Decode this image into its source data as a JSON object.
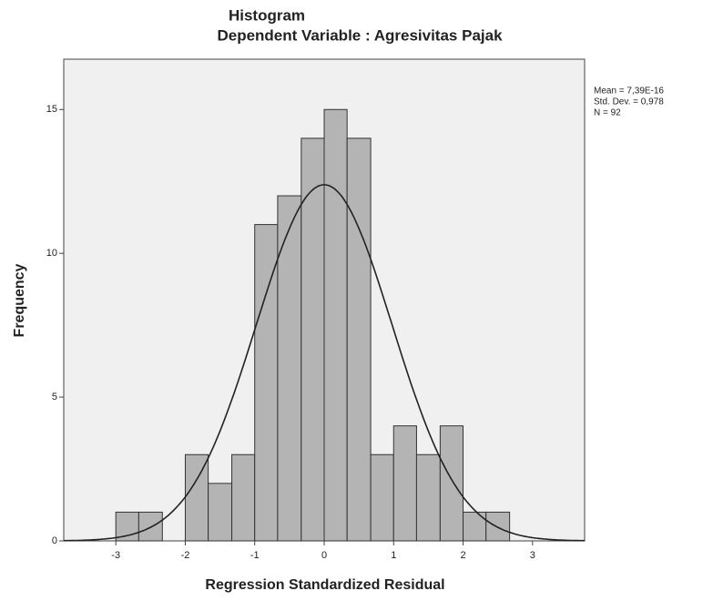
{
  "chart_data": {
    "type": "histogram",
    "title": "Histogram",
    "subtitle": "Dependent Variable : Agresivitas Pajak",
    "x_label": "Regression Standardized Residual",
    "y_label": "Frequency",
    "bins": [
      -3,
      -2.67,
      -2.33,
      -2,
      -1.67,
      -1.33,
      -1,
      -0.67,
      -0.33,
      0,
      0.33,
      0.67,
      1,
      1.33,
      1.67,
      2,
      2.33,
      2.67
    ],
    "values": [
      1,
      1,
      0,
      3,
      2,
      3,
      11,
      12,
      14,
      15,
      14,
      3,
      4,
      3,
      4,
      1,
      1
    ],
    "color": "#b4b4b4",
    "xlim": [
      -3.75,
      3.75
    ],
    "xticks": [
      -3,
      -2,
      -1,
      0,
      1,
      2,
      3
    ],
    "ylim": [
      0,
      16.75
    ],
    "yticks": [
      0,
      5,
      10,
      15
    ],
    "annotations": [
      "Mean = 7,39E-16",
      "Std. Dev. = 0,978",
      "N = 92"
    ],
    "normal_curve": {
      "mean": 7.39e-16,
      "sd": 0.978,
      "n": 92
    }
  }
}
